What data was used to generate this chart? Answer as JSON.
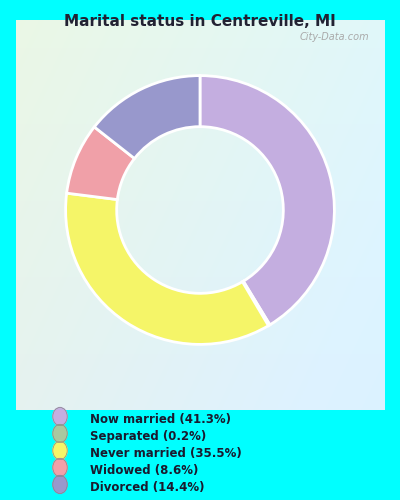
{
  "title": "Marital status in Centreville, MI",
  "title_color": "#222233",
  "background_color": "#00ffff",
  "slices": [
    {
      "label": "Now married (41.3%)",
      "value": 41.3,
      "color": "#c4aee0"
    },
    {
      "label": "Separated (0.2%)",
      "value": 0.2,
      "color": "#a8c8a0"
    },
    {
      "label": "Never married (35.5%)",
      "value": 35.5,
      "color": "#f5f568"
    },
    {
      "label": "Widowed (8.6%)",
      "value": 8.6,
      "color": "#f0a0a8"
    },
    {
      "label": "Divorced (14.4%)",
      "value": 14.4,
      "color": "#9898cc"
    }
  ],
  "legend_colors": [
    "#c4aee0",
    "#a8c8a0",
    "#f5f568",
    "#f0a0a8",
    "#9898cc"
  ],
  "donut_width": 0.38,
  "figsize": [
    4.0,
    5.0
  ],
  "dpi": 100
}
